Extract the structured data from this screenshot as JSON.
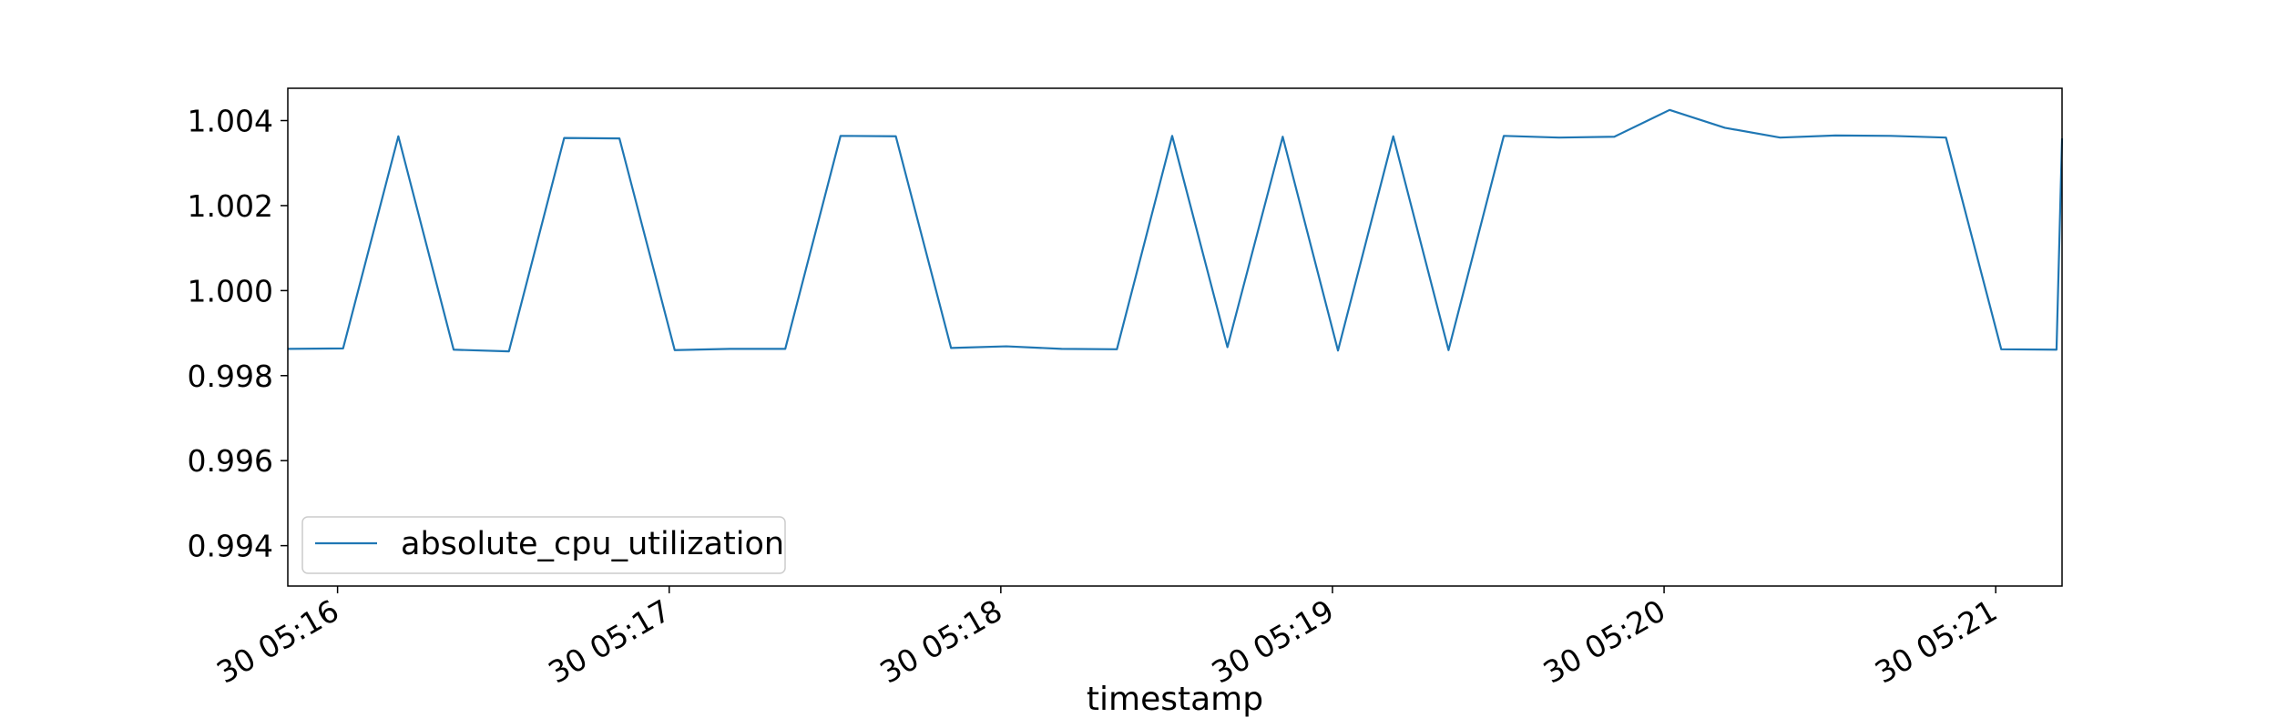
{
  "chart_data": {
    "type": "line",
    "title": "",
    "xlabel": "timestamp",
    "ylabel": "",
    "x_tick_labels": [
      "30 05:16",
      "30 05:17",
      "30 05:18",
      "30 05:19",
      "30 05:20",
      "30 05:21"
    ],
    "y_tick_labels": [
      "0.994",
      "0.996",
      "0.998",
      "1.000",
      "1.002",
      "1.004"
    ],
    "ylim": [
      0.99305,
      1.00476
    ],
    "xlim": [
      "05:15:51",
      "05:21:12"
    ],
    "grid": false,
    "legend": "lower-left",
    "series": [
      {
        "name": "absolute_cpu_utilization",
        "color": "#1f77b4",
        "x": [
          "05:15:51",
          "05:16:01",
          "05:16:11",
          "05:16:21",
          "05:16:31",
          "05:16:41",
          "05:16:51",
          "05:17:01",
          "05:17:11",
          "05:17:21",
          "05:17:31",
          "05:17:41",
          "05:17:51",
          "05:18:01",
          "05:18:11",
          "05:18:21",
          "05:18:31",
          "05:18:41",
          "05:18:51",
          "05:19:01",
          "05:19:11",
          "05:19:21",
          "05:19:31",
          "05:19:41",
          "05:19:51",
          "05:20:01",
          "05:20:11",
          "05:20:21",
          "05:20:31",
          "05:20:41",
          "05:20:51",
          "05:21:01",
          "05:21:11",
          "05:21:12"
        ],
        "values": [
          0.99863,
          0.99864,
          1.00363,
          0.99861,
          0.99857,
          1.00359,
          1.00358,
          0.9986,
          0.99863,
          0.99863,
          1.00364,
          1.00363,
          0.99865,
          0.99869,
          0.99863,
          0.99862,
          1.00364,
          0.99867,
          1.00362,
          0.99859,
          1.00363,
          0.9986,
          1.00364,
          1.0036,
          1.00362,
          1.00425,
          1.00383,
          1.0036,
          1.00365,
          1.00364,
          1.0036,
          0.99862,
          0.99861,
          1.00358
        ]
      }
    ]
  }
}
